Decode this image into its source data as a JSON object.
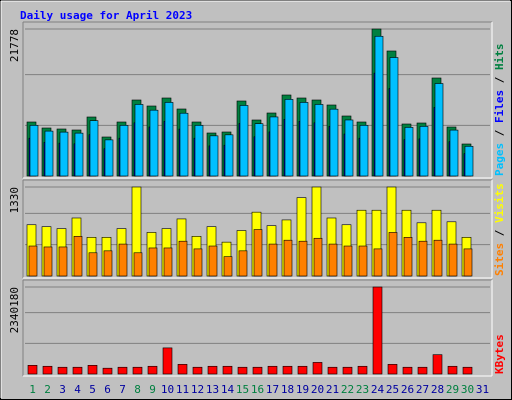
{
  "chart_data": [
    {
      "type": "bar",
      "title": "Daily usage for April 2023",
      "legend_separator": " / ",
      "ylim": [
        0,
        21778
      ],
      "yticks": [
        21778
      ],
      "series": [
        {
          "name": "Hits",
          "color": "#008040",
          "values": [
            8000,
            7111,
            6963,
            6815,
            8741,
            5778,
            8000,
            11259,
            10370,
            11556,
            9926,
            8000,
            6370,
            6519,
            11111,
            8296,
            9333,
            12000,
            11556,
            11259,
            10519,
            8889,
            8000,
            21778,
            18519,
            7704,
            7852,
            14519,
            7259,
            4741,
            0
          ]
        },
        {
          "name": "Files",
          "color": "#0000ff",
          "values": [
            5600,
            4980,
            4870,
            4770,
            6120,
            4040,
            5600,
            7880,
            7260,
            8090,
            6950,
            5600,
            4460,
            4560,
            7780,
            5810,
            6530,
            8400,
            8090,
            7880,
            7360,
            6220,
            5600,
            15240,
            12960,
            5390,
            5500,
            10160,
            5080,
            3320,
            0
          ]
        },
        {
          "name": "Pages",
          "color": "#00c0ff",
          "values": [
            7500,
            6650,
            6500,
            6350,
            8200,
            5350,
            7500,
            10600,
            9750,
            10900,
            9300,
            7500,
            5950,
            6100,
            10450,
            7750,
            8750,
            11350,
            10900,
            10600,
            9900,
            8300,
            7500,
            20700,
            17550,
            7200,
            7350,
            13700,
            6800,
            4400,
            0
          ]
        }
      ]
    },
    {
      "type": "bar",
      "legend_separator": " / ",
      "ylim": [
        0,
        1330
      ],
      "yticks": [
        1330
      ],
      "series": [
        {
          "name": "Visits",
          "color": "#ffff00",
          "values": [
            766,
            737,
            708,
            867,
            578,
            578,
            708,
            1330,
            651,
            708,
            853,
            593,
            737,
            506,
            679,
            954,
            752,
            838,
            1171,
            1330,
            867,
            766,
            983,
            983,
            1330,
            983,
            795,
            983,
            810,
            578,
            0
          ]
        },
        {
          "name": "Sites",
          "color": "#ff8000",
          "values": [
            448,
            434,
            434,
            593,
            347,
            376,
            477,
            347,
            419,
            419,
            520,
            405,
            448,
            289,
            376,
            694,
            477,
            535,
            520,
            564,
            477,
            448,
            448,
            405,
            651,
            578,
            520,
            535,
            477,
            405,
            0
          ]
        }
      ]
    },
    {
      "type": "bar",
      "ylim": [
        0,
        2340180
      ],
      "yticks": [
        2340180
      ],
      "categories": [
        "1",
        "2",
        "3",
        "4",
        "5",
        "6",
        "7",
        "8",
        "9",
        "10",
        "11",
        "12",
        "13",
        "14",
        "15",
        "16",
        "17",
        "18",
        "19",
        "20",
        "21",
        "22",
        "23",
        "24",
        "25",
        "26",
        "27",
        "28",
        "29",
        "30",
        "31"
      ],
      "category_colors": [
        "#008040",
        "#008040",
        "#0000a0",
        "#0000a0",
        "#0000a0",
        "#0000a0",
        "#0000a0",
        "#008040",
        "#008040",
        "#0000a0",
        "#0000a0",
        "#0000a0",
        "#0000a0",
        "#0000a0",
        "#008040",
        "#008040",
        "#0000a0",
        "#0000a0",
        "#0000a0",
        "#0000a0",
        "#0000a0",
        "#008040",
        "#008040",
        "#0000a0",
        "#0000a0",
        "#0000a0",
        "#0000a0",
        "#0000a0",
        "#008040",
        "#008040",
        "#0000a0"
      ],
      "series": [
        {
          "name": "KBytes",
          "color": "#ff0000",
          "values": [
            234018,
            208016,
            182014,
            182014,
            234018,
            156012,
            182014,
            182014,
            208016,
            702054,
            260020,
            182014,
            208016,
            208016,
            182014,
            182014,
            208016,
            208016,
            208016,
            312024,
            182014,
            182014,
            208016,
            2340180,
            260020,
            182014,
            182014,
            520036,
            208016,
            182014,
            0
          ]
        }
      ]
    }
  ]
}
